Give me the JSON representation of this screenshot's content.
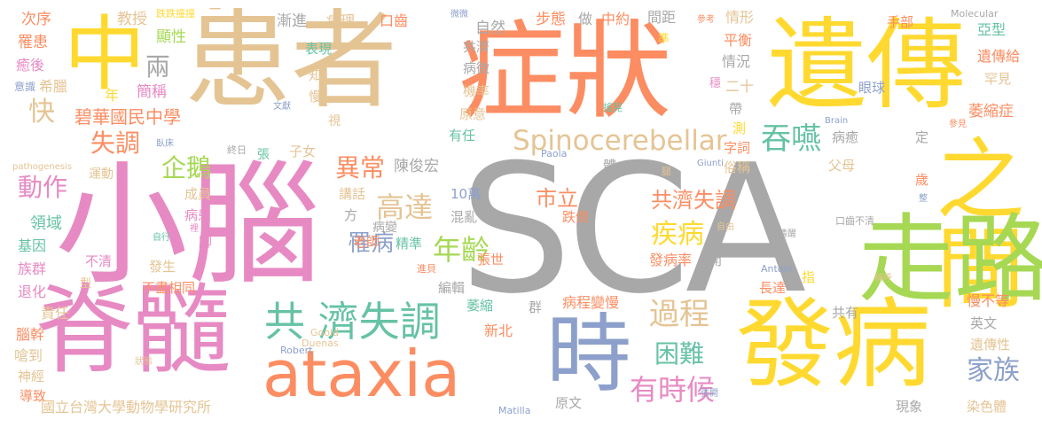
{
  "colors": {
    "gray": "#a8a8a8",
    "tan": "#e5c494",
    "orange": "#fc8d62",
    "yellow": "#ffd92f",
    "green": "#a6d854",
    "teal": "#66c2a5",
    "blue": "#8da0cb",
    "pink": "#e78ac3"
  },
  "words": {
    "sca": "SCA",
    "huanzhe": "患者",
    "xiaonao": "小腦",
    "zhengzhuang": "症狀",
    "yichuan": "遺傳",
    "zhong": "中",
    "jisui": "脊髓",
    "ataxia": "ataxia",
    "fabing": "發病",
    "zhijian": "之間",
    "zoulu": "走路",
    "shi": "時",
    "gongji_shitiao": "共 濟失調",
    "spinocerebellar": "Spinocerebellar",
    "tunyan": "吞嚥",
    "youshihou": "有時候",
    "kun_nan": "困難",
    "guocheng": "過程",
    "jiazu": "家族",
    "nianling": "年齡",
    "gaoda": "高達",
    "jibing": "疾病",
    "yichang": "異常",
    "gongjishitiao2": "共濟失調",
    "qie": "企鵝",
    "shitiao": "失調",
    "dongzuo": "動作",
    "kuai": "快",
    "liang": "兩",
    "bihua": "碧華國民中學",
    "shili": "市立",
    "lingyu": "領域",
    "cixu": "次序",
    "luohuan": "罹患",
    "yuhou": "癒後",
    "yishi": "意識",
    "xila": "希臘",
    "nian": "年",
    "jiancheng": "簡稱",
    "jiaoshou": "教授",
    "xianxing": "顯性",
    "er": "二",
    "dieda": "跌跌撞撞",
    "jianjin": "漸進",
    "bingli": "病理",
    "kouchi": "口齒",
    "buxing": "步態",
    "zuo": "做",
    "zhongyue": "中約",
    "jianju": "間距",
    "qingxing": "情形",
    "shoubu": "手部",
    "molecular": "Molecular",
    "yaxing": "亞型",
    "yichuangei": "遺傳給",
    "hanjian": "罕見",
    "weisuozheng": "萎縮症",
    "yanqiu": "眼球",
    "bingyu": "病癒",
    "fumu": "父母",
    "sui": "歲",
    "jihe": "共濟",
    "bingzheng": "病徵",
    "jilv": "機率",
    "yuanyi": "原意",
    "youren": "有任",
    "ziran": "自然",
    "biaoxian": "表現",
    "zhi": "知",
    "man": "慢",
    "shi2": "視",
    "wenxian": "文獻",
    "woku": "臥床",
    "pathogenesis": "pathogenesis",
    "yundong": "運動",
    "zhongqi": "終日",
    "zhang": "張",
    "zinv": "子女",
    "chengyuan": "成員",
    "binghuan": "病患",
    "jiao": "腳",
    "jiyin": "基因",
    "zuqun": "族群",
    "tuihua": "退化",
    "zeren": "責任",
    "naogan": "腦幹",
    "qiangdao": "嗆到",
    "shenjing": "神經",
    "daozhi": "導致",
    "guoli": "國立台灣大學動物學研究所",
    "chenjunhong": "陳俊宏",
    "jianghua": "講話",
    "wan10": "10萬",
    "fang": "方",
    "hunluan": "混亂",
    "bingbian": "病變",
    "laoshi": "老師",
    "jingzhun": "精準",
    "zhangshi": "張世",
    "bianji": "編輯",
    "weisuo": "萎縮",
    "jinbei": "進貝",
    "goold": "Goold",
    "duenas": "Duenas",
    "robert": "Robert",
    "matilla": "Matilla",
    "zhuangtai": "狀態",
    "xinbei": "新北",
    "qun": "群",
    "bingchengbianman": "病程變慢",
    "yuanwen": "原文",
    "zhangkai": "張開",
    "fabinglv": "發病率",
    "kai": "開",
    "diedao": "跌倒",
    "ti": "體",
    "tui": "腿",
    "paola": "Paola",
    "giunti": "Giunti",
    "antoni": "Antoni",
    "zhangda": "長達",
    "zhi2": "指",
    "manbudeng": "慢不等",
    "yingwen": "英文",
    "yichuanxing": "遺傳性",
    "ranseti": "染色體",
    "xianxiang": "現象",
    "gongyou": "共有",
    "chenghu": "稱呼",
    "kouchibuqing": "口齒不清",
    "qingxing2": "清醒",
    "ziyou": "自由",
    "zheng": "整",
    "brain": "Brain",
    "cankao": "參考",
    "pingheng": "平衡",
    "qingkuang": "情況",
    "wen": "穩",
    "ershi": "二十",
    "dai": "帶",
    "zhun": "準",
    "ce": "測",
    "zici": "字詞",
    "suchen": "俗稱",
    "ding": "定",
    "canjian": "參見",
    "yaohuang": "搖晃",
    "weijian": "微微",
    "buqing": "不清",
    "xing": "型",
    "buqinxiangtong": "不盡相同",
    "fasheng": "發生",
    "li": "裡",
    "zixing": "自行",
    "luobing": "罹病"
  }
}
